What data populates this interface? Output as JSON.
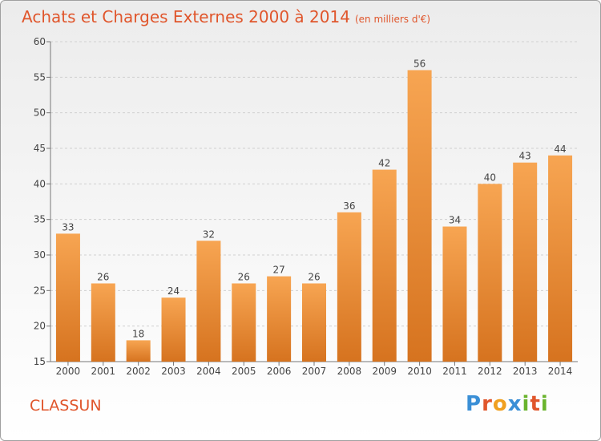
{
  "title": "Achats et Charges Externes 2000 à 2014",
  "unit": "(en milliers d'€)",
  "commune": "CLASSUN",
  "logo": {
    "text": "Proxiti",
    "letters": [
      {
        "char": "P",
        "color": "#3a8fd6"
      },
      {
        "char": "r",
        "color": "#e0562c"
      },
      {
        "char": "o",
        "color": "#f0a020"
      },
      {
        "char": "x",
        "color": "#3a8fd6"
      },
      {
        "char": "i",
        "color": "#6ab42d"
      },
      {
        "char": "t",
        "color": "#e0562c"
      },
      {
        "char": "i",
        "color": "#6ab42d"
      }
    ]
  },
  "colors": {
    "bar_top": "#f7a552",
    "bar_bottom": "#d6731f",
    "accent": "#e0562c",
    "grid": "#d0d0d0",
    "axis": "#777777"
  },
  "chart_data": {
    "type": "bar",
    "title": "Achats et Charges Externes 2000 à 2014",
    "xlabel": "",
    "ylabel": "",
    "categories": [
      "2000",
      "2001",
      "2002",
      "2003",
      "2004",
      "2005",
      "2006",
      "2007",
      "2008",
      "2009",
      "2010",
      "2011",
      "2012",
      "2013",
      "2014"
    ],
    "values": [
      33,
      26,
      18,
      24,
      32,
      26,
      27,
      26,
      36,
      42,
      56,
      34,
      40,
      43,
      44
    ],
    "ylim": [
      15,
      60
    ],
    "yticks": [
      15,
      20,
      25,
      30,
      35,
      40,
      45,
      50,
      55,
      60
    ],
    "grid": true,
    "legend": "none"
  }
}
